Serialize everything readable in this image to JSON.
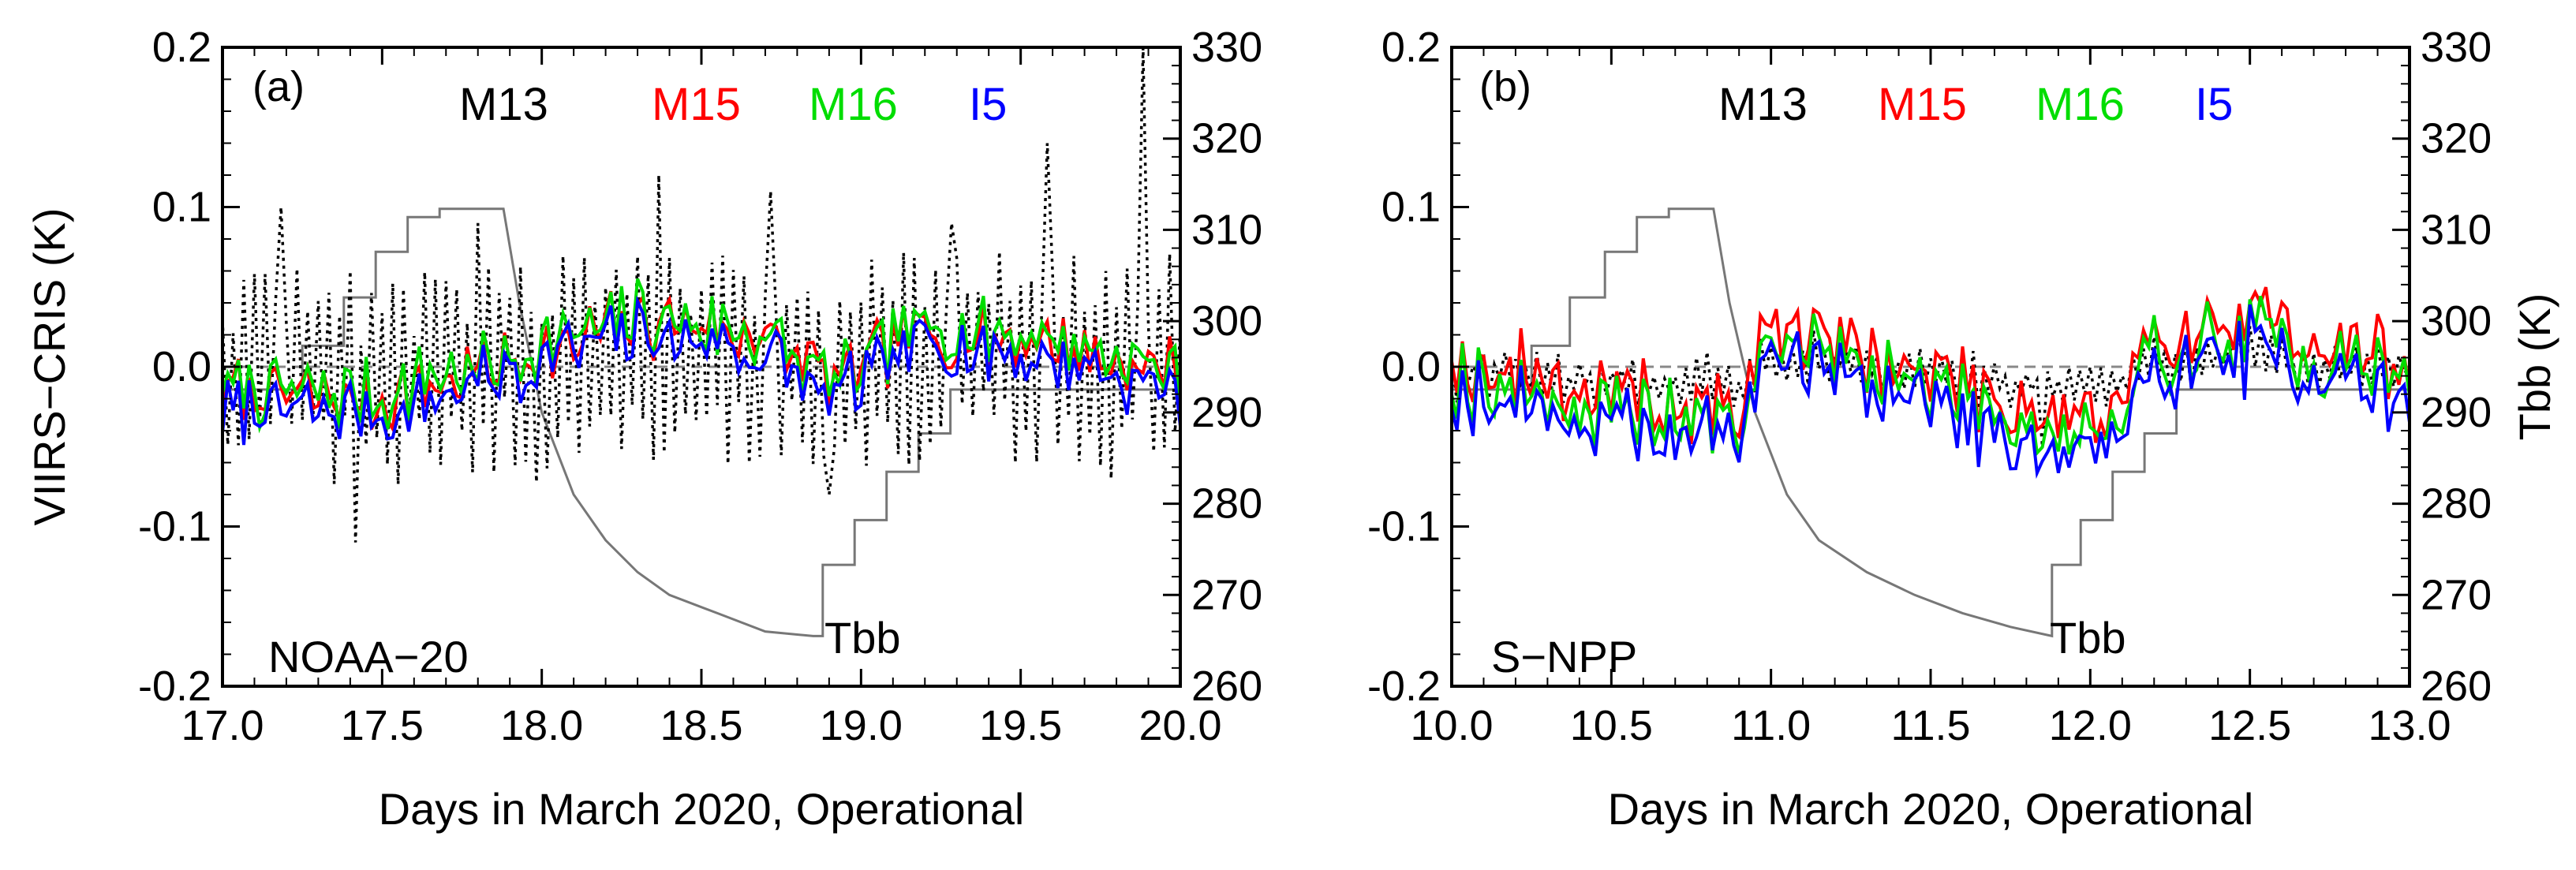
{
  "colors": {
    "M13": "#000000",
    "M15": "#ff0000",
    "M16": "#00dd00",
    "I5": "#0000ff",
    "Tbb": "#777777",
    "zero": "#888888"
  },
  "chart_data": [
    {
      "type": "line",
      "panel": "(a)",
      "satellite": "NOAA−20",
      "xlabel": "Days in March 2020, Operational",
      "ylabel_left": "VIIRS−CRIS (K)",
      "ylabel_right": "",
      "xlim": [
        17.0,
        20.0
      ],
      "ylim_left": [
        -0.2,
        0.2
      ],
      "ylim_right": [
        260,
        330
      ],
      "xticks": [
        "17.0",
        "17.5",
        "18.0",
        "18.5",
        "19.0",
        "19.5",
        "20.0"
      ],
      "yticks_left": [
        "0.2",
        "0.1",
        "0.0",
        "-0.1",
        "-0.2"
      ],
      "yticks_right": [
        "330",
        "320",
        "310",
        "300",
        "290",
        "280",
        "270",
        "260"
      ],
      "legend": [
        "M13",
        "M15",
        "M16",
        "I5"
      ],
      "tbb_label": "Tbb",
      "tbb_points": [
        [
          17.0,
          292.5
        ],
        [
          17.25,
          292.5
        ],
        [
          17.25,
          297.3
        ],
        [
          17.38,
          297.3
        ],
        [
          17.38,
          302.6
        ],
        [
          17.48,
          302.6
        ],
        [
          17.48,
          307.6
        ],
        [
          17.58,
          307.6
        ],
        [
          17.58,
          311.4
        ],
        [
          17.68,
          311.4
        ],
        [
          17.68,
          312.3
        ],
        [
          17.88,
          312.3
        ],
        [
          17.93,
          302
        ],
        [
          18.0,
          290
        ],
        [
          18.1,
          281
        ],
        [
          18.2,
          276
        ],
        [
          18.3,
          272.5
        ],
        [
          18.4,
          270
        ],
        [
          18.55,
          268
        ],
        [
          18.7,
          266
        ],
        [
          18.85,
          265.5
        ],
        [
          18.88,
          265.5
        ],
        [
          18.88,
          273.3
        ],
        [
          18.98,
          273.3
        ],
        [
          18.98,
          278.2
        ],
        [
          19.08,
          278.2
        ],
        [
          19.08,
          283.5
        ],
        [
          19.18,
          283.5
        ],
        [
          19.18,
          287.7
        ],
        [
          19.28,
          287.7
        ],
        [
          19.28,
          292.5
        ],
        [
          20.0,
          292.5
        ]
      ],
      "tbb_label_x": 19.05,
      "n": 181,
      "m13_amp": 0.058,
      "m13_spike_x": [
        17.18,
        17.42,
        17.8,
        18.37,
        18.72,
        18.9,
        19.28,
        19.58,
        19.78,
        19.88
      ],
      "m13_spike_y": [
        0.1,
        -0.11,
        0.09,
        0.12,
        0.11,
        -0.08,
        0.09,
        0.14,
        -0.07,
        0.2
      ],
      "series_segments": [
        [
          17.0,
          -0.02
        ],
        [
          17.5,
          -0.025
        ],
        [
          17.9,
          0.0
        ],
        [
          18.3,
          0.025
        ],
        [
          18.7,
          0.015
        ],
        [
          18.9,
          -0.015
        ],
        [
          19.2,
          0.02
        ],
        [
          19.6,
          0.01
        ],
        [
          20.0,
          -0.01
        ]
      ],
      "offsets": {
        "M15": 0.004,
        "M16": 0.007,
        "I5": -0.005
      },
      "noise": 0.018,
      "seed": 7
    },
    {
      "type": "line",
      "panel": "(b)",
      "satellite": "S−NPP",
      "xlabel": "Days in March 2020, Operational",
      "ylabel_left": "",
      "ylabel_right": "Tbb (K)",
      "xlim": [
        10.0,
        13.0
      ],
      "ylim_left": [
        -0.2,
        0.2
      ],
      "ylim_right": [
        260,
        330
      ],
      "xticks": [
        "10.0",
        "10.5",
        "11.0",
        "11.5",
        "12.0",
        "12.5",
        "13.0"
      ],
      "yticks_left": [
        "0.2",
        "0.1",
        "0.0",
        "-0.1",
        "-0.2"
      ],
      "yticks_right": [
        "330",
        "320",
        "310",
        "300",
        "290",
        "280",
        "270",
        "260"
      ],
      "legend": [
        "M13",
        "M15",
        "M16",
        "I5"
      ],
      "tbb_label": "Tbb",
      "tbb_points": [
        [
          10.0,
          292.5
        ],
        [
          10.25,
          292.5
        ],
        [
          10.25,
          297.3
        ],
        [
          10.37,
          297.3
        ],
        [
          10.37,
          302.6
        ],
        [
          10.48,
          302.6
        ],
        [
          10.48,
          307.6
        ],
        [
          10.58,
          307.6
        ],
        [
          10.58,
          311.4
        ],
        [
          10.68,
          311.4
        ],
        [
          10.68,
          312.3
        ],
        [
          10.82,
          312.3
        ],
        [
          10.87,
          302
        ],
        [
          10.95,
          290
        ],
        [
          11.05,
          281
        ],
        [
          11.15,
          276
        ],
        [
          11.3,
          272.5
        ],
        [
          11.45,
          270
        ],
        [
          11.6,
          268
        ],
        [
          11.75,
          266.5
        ],
        [
          11.88,
          265.5
        ],
        [
          11.88,
          273.3
        ],
        [
          11.97,
          273.3
        ],
        [
          11.97,
          278.2
        ],
        [
          12.07,
          278.2
        ],
        [
          12.07,
          283.5
        ],
        [
          12.17,
          283.5
        ],
        [
          12.17,
          287.7
        ],
        [
          12.27,
          287.7
        ],
        [
          12.27,
          292.5
        ],
        [
          13.0,
          292.5
        ]
      ],
      "tbb_label_x": 12.05,
      "n": 181,
      "m13_amp": 0.012,
      "m13_spike_x": [
        11.3,
        11.85,
        12.45
      ],
      "m13_spike_y": [
        0.01,
        -0.05,
        0.01
      ],
      "series_segments": [
        [
          10.0,
          -0.005
        ],
        [
          10.5,
          -0.03
        ],
        [
          10.9,
          -0.035
        ],
        [
          11.0,
          0.02
        ],
        [
          11.3,
          0.0
        ],
        [
          11.6,
          -0.02
        ],
        [
          11.9,
          -0.04
        ],
        [
          12.1,
          -0.04
        ],
        [
          12.2,
          0.01
        ],
        [
          12.5,
          0.02
        ],
        [
          13.0,
          -0.01
        ]
      ],
      "offsets": {
        "M15": 0.01,
        "M16": 0.0,
        "I5": -0.01
      },
      "noise": 0.022,
      "seed": 19
    }
  ]
}
